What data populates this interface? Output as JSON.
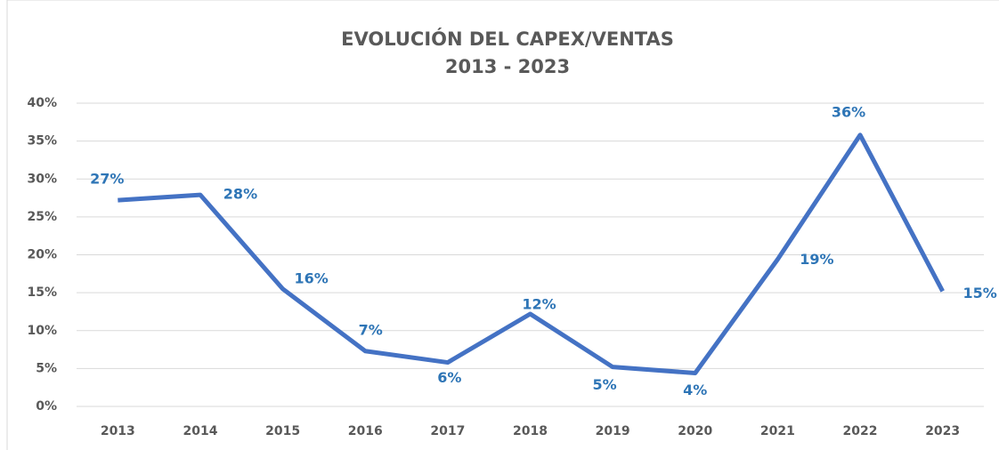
{
  "chart_data": {
    "type": "line",
    "title": "EVOLUCIÓN DEL CAPEX/VENTAS",
    "subtitle": "2013 - 2023",
    "categories": [
      "2013",
      "2014",
      "2015",
      "2016",
      "2017",
      "2018",
      "2019",
      "2020",
      "2021",
      "2022",
      "2023"
    ],
    "series": [
      {
        "name": "CAPEX/VENTAS",
        "color": "#4472c4",
        "values": [
          27.2,
          27.9,
          15.5,
          7.3,
          5.8,
          12.2,
          5.2,
          4.4,
          19.4,
          35.8,
          15.2
        ],
        "value_labels": [
          "27%",
          "28%",
          "16%",
          "7%",
          "6%",
          "12%",
          "5%",
          "4%",
          "19%",
          "36%",
          "15%"
        ]
      }
    ],
    "ylim": [
      0,
      40
    ],
    "yticks": [
      {
        "value": 0,
        "label": "0%"
      },
      {
        "value": 5,
        "label": "5%"
      },
      {
        "value": 10,
        "label": "10%"
      },
      {
        "value": 15,
        "label": "15%"
      },
      {
        "value": 20,
        "label": "20%"
      },
      {
        "value": 25,
        "label": "25%"
      },
      {
        "value": 30,
        "label": "30%"
      },
      {
        "value": 35,
        "label": "35%"
      },
      {
        "value": 40,
        "label": "40%"
      }
    ],
    "grid": true
  }
}
